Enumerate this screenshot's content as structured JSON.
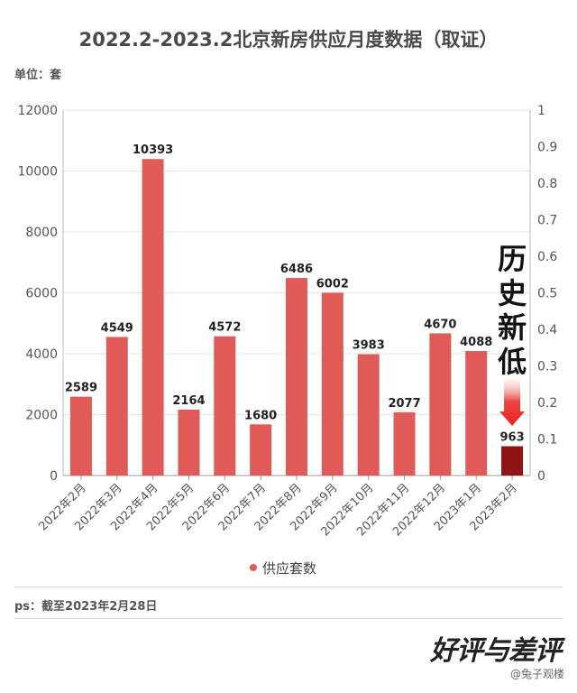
{
  "chart_data": {
    "type": "bar",
    "title": "2022.2-2023.2北京新房供应月度数据（取证）",
    "unit_label": "单位：套",
    "categories": [
      "2022年2月",
      "2022年3月",
      "2022年4月",
      "2022年5月",
      "2022年6月",
      "2022年7月",
      "2022年8月",
      "2022年9月",
      "2022年10月",
      "2022年11月",
      "2022年12月",
      "2023年1月",
      "2023年2月"
    ],
    "series": [
      {
        "name": "供应套数",
        "values": [
          2589,
          4549,
          10393,
          2164,
          4572,
          1680,
          6486,
          6002,
          3983,
          2077,
          4670,
          4088,
          963
        ]
      }
    ],
    "ylim": [
      0,
      12000
    ],
    "yticks": [
      0,
      2000,
      4000,
      6000,
      8000,
      10000,
      12000
    ],
    "y2lim": [
      0,
      1
    ],
    "y2ticks": [
      "0",
      "0.1",
      "0.2",
      "0.3",
      "0.4",
      "0.5",
      "0.6",
      "0.7",
      "0.8",
      "0.9",
      "1"
    ],
    "grid": true,
    "legend": "bottom-center",
    "annotation": {
      "text": [
        "历",
        "史",
        "新",
        "低"
      ],
      "target_category": "2023年2月"
    },
    "colors": {
      "bar": "#e05a58",
      "highlight_bar": "#8f1414",
      "arrow": "#e8231e"
    }
  },
  "footnote": "ps：截至2023年2月28日",
  "watermark": {
    "logo_text": "好评与差评",
    "source": "@兔子观楼"
  }
}
